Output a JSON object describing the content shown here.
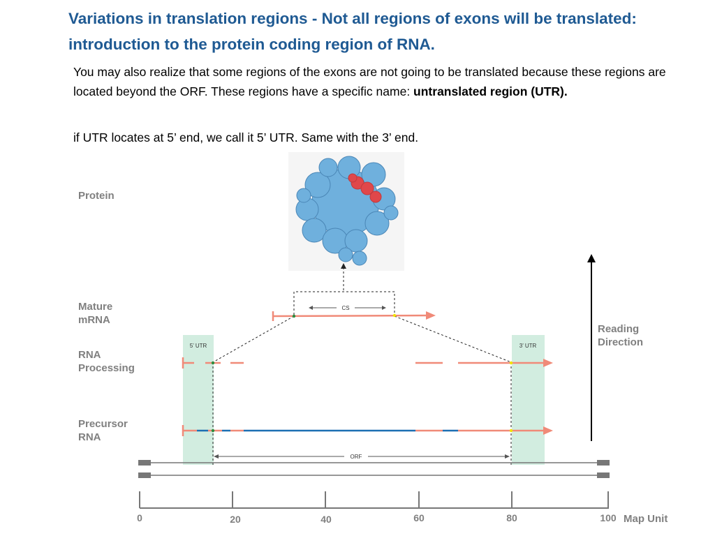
{
  "title": "Variations in translation regions - Not all regions of exons will be translated: introduction to the protein coding region of RNA.",
  "paragraph1": {
    "text": "You may also realize that some regions of the exons are not going to be translated because these regions are located beyond the ORF. These regions have a specific name: ",
    "bold": "untranslated region (UTR)."
  },
  "paragraph2": "if UTR locates at 5’ end, we call it 5’ UTR. Same with the 3’ end.",
  "labels": {
    "protein": "Protein",
    "mature_mrna": "Mature mRNA",
    "rna_processing": "RNA Processing",
    "precursor_rna": "Precursor RNA",
    "reading_direction": "Reading Direction",
    "utr5": "5’ UTR",
    "utr3": "3’ UTR",
    "cs": "CS",
    "orf": "ORF",
    "map_unit": "Map Unit"
  },
  "axis_ticks": [
    "0",
    "20",
    "40",
    "60",
    "80",
    "100"
  ],
  "colors": {
    "title": "#1f5a93",
    "rna_salmon": "#f08a78",
    "exon_blue": "#1c6fb2",
    "utr_box": "#d2ede0",
    "protein_blue": "#6fb0dd",
    "protein_red": "#e0474a",
    "start_marker": "#2e8b3e",
    "stop_marker": "#f2e200"
  },
  "icons": {
    "protein": "protein-structure-icon",
    "reading_direction": "up-arrow-icon"
  }
}
